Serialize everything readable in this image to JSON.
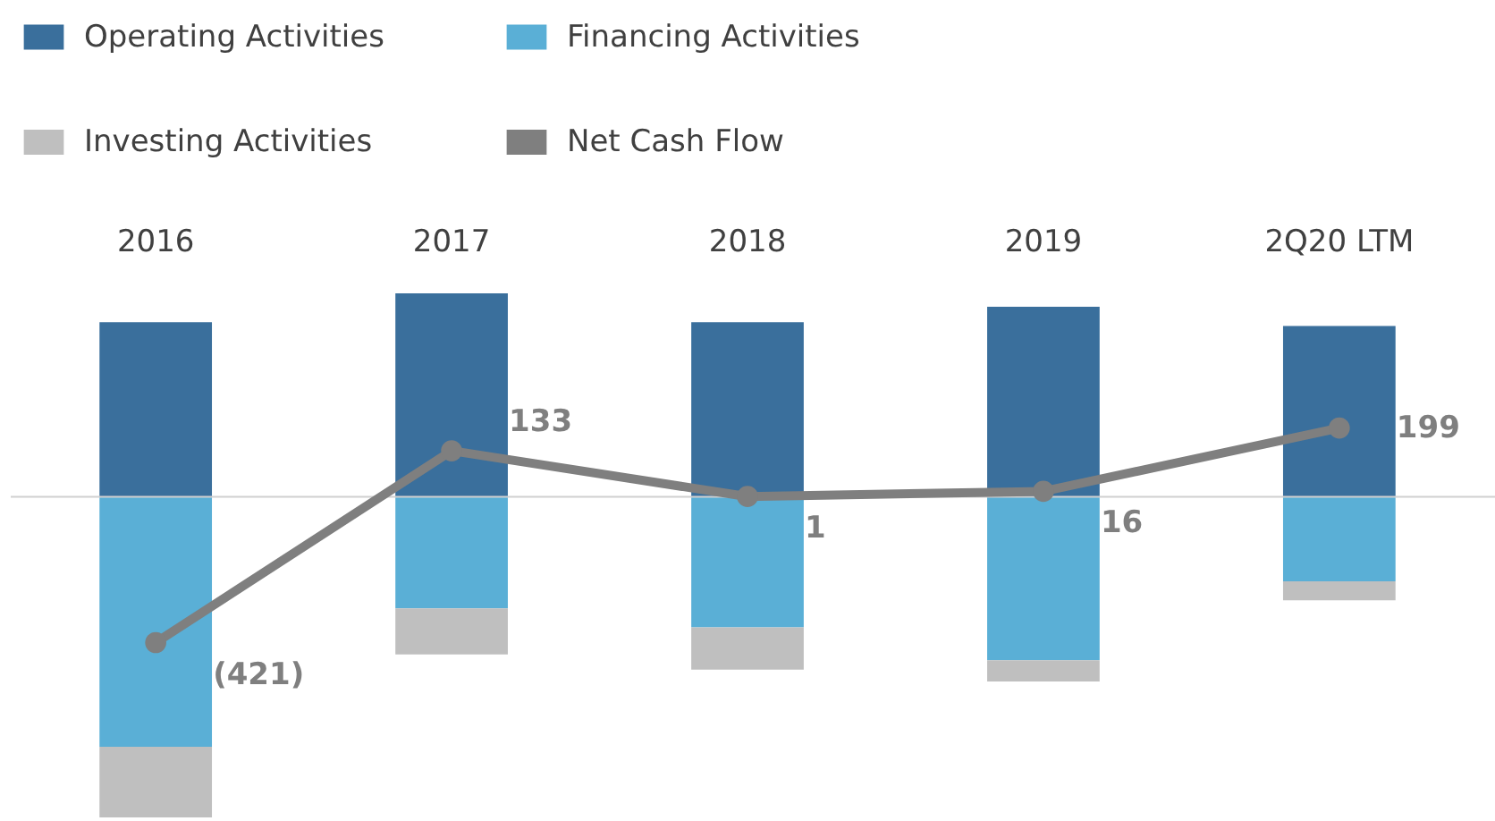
{
  "chart_data": {
    "type": "bar",
    "stacked": true,
    "categories": [
      "2016",
      "2017",
      "2018",
      "2019",
      "2Q20 LTM"
    ],
    "series": [
      {
        "name": "Operating Activities",
        "color": "#3a6f9c",
        "values": [
          505,
          588,
          505,
          549,
          494
        ]
      },
      {
        "name": "Financing Activities",
        "color": "#5aafd6",
        "values": [
          -722,
          -322,
          -377,
          -472,
          -244
        ]
      },
      {
        "name": "Investing Activities",
        "color": "#bfbfbf",
        "values": [
          -204,
          -133,
          -122,
          -61,
          -55
        ]
      },
      {
        "name": "Net Cash Flow",
        "type": "line",
        "color": "#7f7f7f",
        "marker": "circle",
        "values": [
          -421,
          133,
          1,
          16,
          199
        ],
        "value_labels": [
          "(421)",
          "133",
          "1",
          "16",
          "199"
        ]
      }
    ],
    "tick_labels": "x",
    "legend": "top",
    "grid": false
  }
}
